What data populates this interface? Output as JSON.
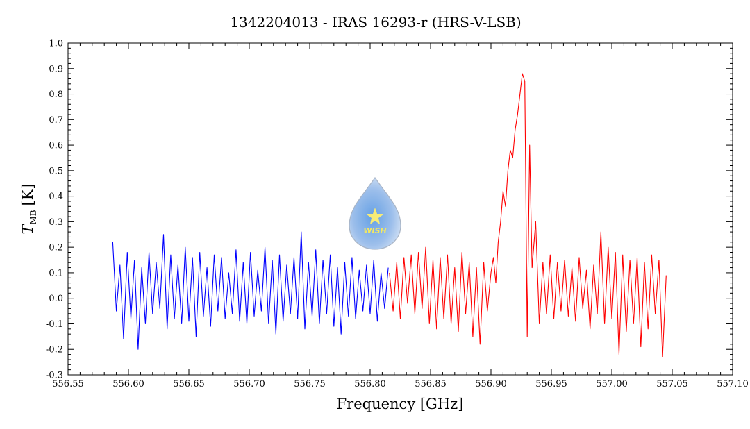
{
  "chart_data": {
    "type": "line",
    "title": "1342204013 - IRAS 16293-r (HRS-V-LSB)",
    "xlabel": "Frequency [GHz]",
    "ylabel": "T",
    "ylabel_subscript": "MB",
    "ylabel_unit": "[K]",
    "xlim": [
      556.55,
      557.1
    ],
    "ylim": [
      -0.3,
      1.0
    ],
    "x_ticks": [
      "556.55",
      "556.60",
      "556.65",
      "556.70",
      "556.75",
      "556.80",
      "556.85",
      "556.90",
      "556.95",
      "557.00",
      "557.05",
      "557.10"
    ],
    "y_ticks": [
      "1.0",
      "0.9",
      "0.8",
      "0.7",
      "0.6",
      "0.5",
      "0.4",
      "0.3",
      "0.2",
      "0.1",
      "0.0",
      "-0.1",
      "-0.2",
      "-0.3"
    ],
    "grid": false,
    "series": [
      {
        "color": "#0000ff",
        "x": [
          556.587,
          556.59,
          556.593,
          556.596,
          556.599,
          556.602,
          556.605,
          556.608,
          556.611,
          556.614,
          556.617,
          556.62,
          556.623,
          556.626,
          556.629,
          556.632,
          556.635,
          556.638,
          556.641,
          556.644,
          556.647,
          556.65,
          556.653,
          556.656,
          556.659,
          556.662,
          556.665,
          556.668,
          556.671,
          556.674,
          556.677,
          556.68,
          556.683,
          556.686,
          556.689,
          556.692,
          556.695,
          556.698,
          556.701,
          556.704,
          556.707,
          556.71,
          556.713,
          556.716,
          556.719,
          556.722,
          556.725,
          556.728,
          556.731,
          556.734,
          556.737,
          556.74,
          556.743,
          556.746,
          556.749,
          556.752,
          556.755,
          556.758,
          556.761,
          556.764,
          556.767,
          556.77,
          556.773,
          556.776,
          556.779,
          556.782,
          556.785,
          556.788,
          556.791,
          556.794,
          556.797,
          556.8,
          556.803,
          556.806,
          556.809,
          556.812,
          556.815
        ],
        "y": [
          0.22,
          -0.05,
          0.13,
          -0.16,
          0.18,
          -0.08,
          0.15,
          -0.2,
          0.12,
          -0.1,
          0.18,
          -0.06,
          0.14,
          -0.04,
          0.25,
          -0.12,
          0.17,
          -0.08,
          0.13,
          -0.1,
          0.2,
          -0.09,
          0.16,
          -0.15,
          0.18,
          -0.07,
          0.12,
          -0.11,
          0.17,
          -0.05,
          0.16,
          -0.08,
          0.1,
          -0.06,
          0.19,
          -0.09,
          0.14,
          -0.1,
          0.18,
          -0.07,
          0.11,
          -0.05,
          0.2,
          -0.1,
          0.15,
          -0.14,
          0.17,
          -0.09,
          0.13,
          -0.06,
          0.16,
          -0.08,
          0.26,
          -0.12,
          0.14,
          -0.07,
          0.19,
          -0.1,
          0.15,
          -0.06,
          0.17,
          -0.11,
          0.12,
          -0.14,
          0.14,
          -0.07,
          0.16,
          -0.08,
          0.11,
          -0.05,
          0.13,
          -0.06,
          0.15,
          -0.09,
          0.1,
          -0.04,
          0.12
        ]
      },
      {
        "color": "#ff0000",
        "x": [
          556.816,
          556.819,
          556.822,
          556.825,
          556.828,
          556.831,
          556.834,
          556.837,
          556.84,
          556.843,
          556.846,
          556.849,
          556.852,
          556.855,
          556.858,
          556.861,
          556.864,
          556.867,
          556.87,
          556.873,
          556.876,
          556.879,
          556.882,
          556.885,
          556.888,
          556.891,
          556.894,
          556.897,
          556.9,
          556.902,
          556.904,
          556.906,
          556.908,
          556.91,
          556.912,
          556.914,
          556.916,
          556.918,
          556.92,
          556.922,
          556.924,
          556.926,
          556.928,
          556.93,
          556.932,
          556.934,
          556.937,
          556.94,
          556.943,
          556.946,
          556.949,
          556.952,
          556.955,
          556.958,
          556.961,
          556.964,
          556.967,
          556.97,
          556.973,
          556.976,
          556.979,
          556.982,
          556.985,
          556.988,
          556.991,
          556.994,
          556.997,
          557.0,
          557.003,
          557.006,
          557.009,
          557.012,
          557.015,
          557.018,
          557.021,
          557.024,
          557.027,
          557.03,
          557.033,
          557.036,
          557.039,
          557.042,
          557.045
        ],
        "y": [
          0.1,
          -0.05,
          0.14,
          -0.08,
          0.16,
          -0.02,
          0.17,
          -0.06,
          0.18,
          -0.04,
          0.2,
          -0.1,
          0.15,
          -0.12,
          0.16,
          -0.08,
          0.17,
          -0.1,
          0.12,
          -0.13,
          0.18,
          -0.06,
          0.14,
          -0.15,
          0.12,
          -0.18,
          0.14,
          -0.05,
          0.1,
          0.16,
          0.06,
          0.22,
          0.3,
          0.42,
          0.36,
          0.5,
          0.58,
          0.55,
          0.66,
          0.72,
          0.8,
          0.88,
          0.85,
          -0.15,
          0.6,
          0.12,
          0.3,
          -0.1,
          0.14,
          -0.06,
          0.17,
          -0.08,
          0.14,
          -0.05,
          0.15,
          -0.07,
          0.12,
          -0.09,
          0.16,
          -0.04,
          0.11,
          -0.12,
          0.13,
          -0.06,
          0.26,
          -0.1,
          0.2,
          -0.08,
          0.18,
          -0.22,
          0.17,
          -0.13,
          0.15,
          -0.1,
          0.16,
          -0.19,
          0.14,
          -0.12,
          0.17,
          -0.06,
          0.15,
          -0.23,
          0.09
        ]
      }
    ],
    "watermark": {
      "text": "WISH"
    }
  }
}
